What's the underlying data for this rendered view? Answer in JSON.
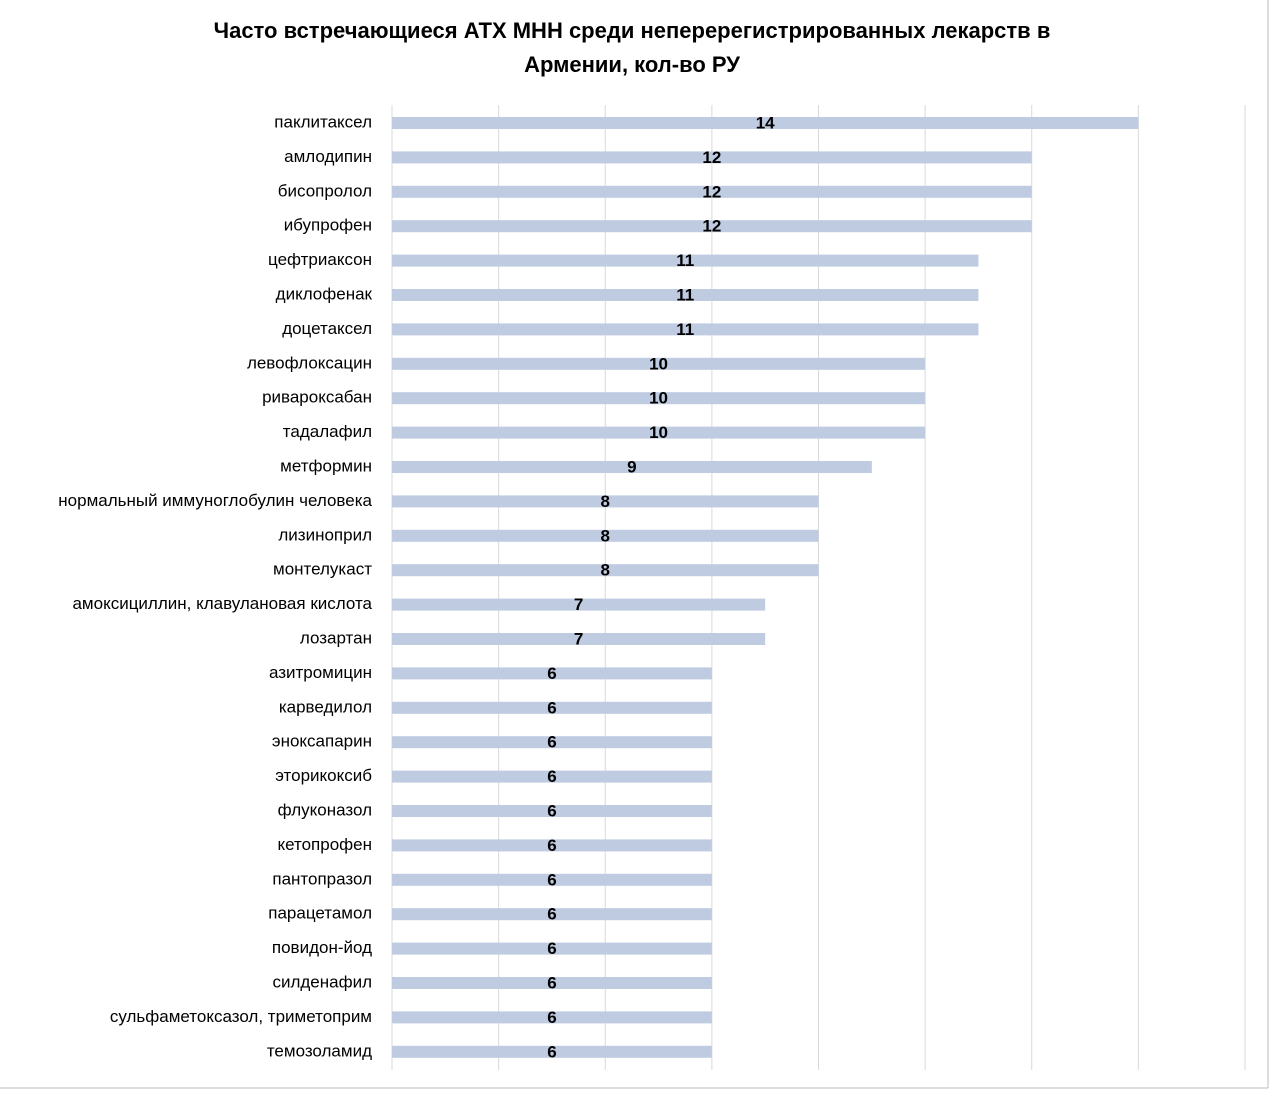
{
  "chart_data": {
    "type": "barh",
    "title": "Часто встречающиеся АТХ МНН среди неперерегистрированных лекарств в Армении, кол-во РУ",
    "categories": [
      "паклитаксел",
      "амлодипин",
      "бисопролол",
      "ибупрофен",
      "цефтриаксон",
      "диклофенак",
      "доцетаксел",
      "левофлоксацин",
      "ривароксабан",
      "тадалафил",
      "метформин",
      "нормальный иммуноглобулин человека",
      "лизиноприл",
      "монтелукаст",
      "амоксициллин, клавулановая кислота",
      "лозартан",
      "азитромицин",
      "карведилол",
      "эноксапарин",
      "эторикоксиб",
      "флуконазол",
      "кетопрофен",
      "пантопразол",
      "парацетамол",
      "повидон-йод",
      "силденафил",
      "сульфаметоксазол, триметоприм",
      "темозоламид"
    ],
    "values": [
      14,
      12,
      12,
      12,
      11,
      11,
      11,
      10,
      10,
      10,
      9,
      8,
      8,
      8,
      7,
      7,
      6,
      6,
      6,
      6,
      6,
      6,
      6,
      6,
      6,
      6,
      6,
      6
    ],
    "color": "#bfcbe1",
    "xlim": [
      0,
      16
    ],
    "xticks": [
      0,
      2,
      4,
      6,
      8,
      10,
      12,
      14,
      16
    ],
    "grid": true
  }
}
